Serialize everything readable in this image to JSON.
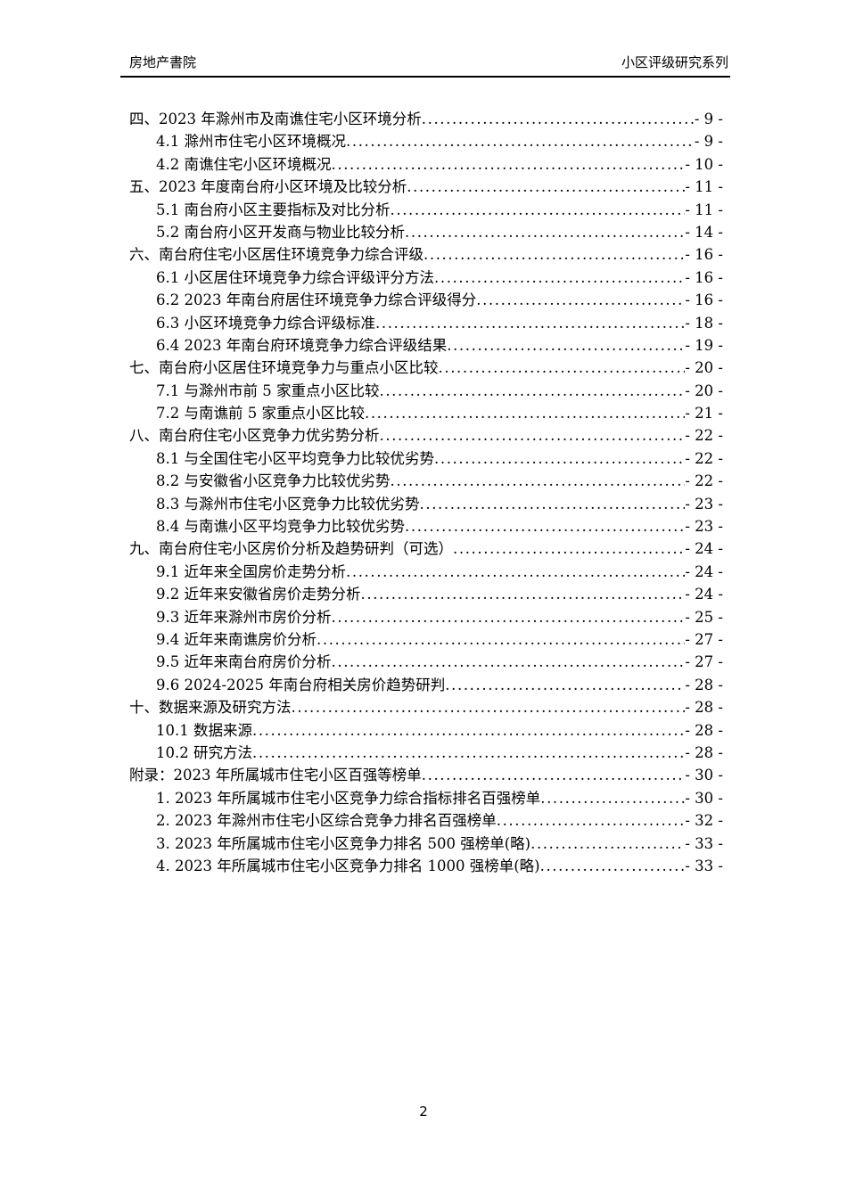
{
  "header": {
    "left": "房地产書院",
    "right": "小区评级研究系列"
  },
  "toc": {
    "entries": [
      {
        "level": 0,
        "text": "四、2023 年滁州市及南谯住宅小区环境分析",
        "page": "- 9 -"
      },
      {
        "level": 1,
        "text": "4.1 滁州市住宅小区环境概况",
        "page": "- 9 -"
      },
      {
        "level": 1,
        "text": "4.2 南谯住宅小区环境概况",
        "page": "- 10 -"
      },
      {
        "level": 0,
        "text": "五、2023 年度南台府小区环境及比较分析",
        "page": "- 11 -"
      },
      {
        "level": 1,
        "text": "5.1 南台府小区主要指标及对比分析",
        "page": "- 11 -"
      },
      {
        "level": 1,
        "text": "5.2 南台府小区开发商与物业比较分析",
        "page": "- 14 -"
      },
      {
        "level": 0,
        "text": "六、南台府住宅小区居住环境竞争力综合评级",
        "page": "- 16 -"
      },
      {
        "level": 1,
        "text": "6.1 小区居住环境竞争力综合评级评分方法",
        "page": "- 16 -"
      },
      {
        "level": 1,
        "text": "6.2 2023 年南台府居住环境竞争力综合评级得分",
        "page": "- 16 -"
      },
      {
        "level": 1,
        "text": "6.3 小区环境竞争力综合评级标准",
        "page": "- 18 -"
      },
      {
        "level": 1,
        "text": "6.4 2023 年南台府环境竞争力综合评级结果",
        "page": "- 19 -"
      },
      {
        "level": 0,
        "text": "七、南台府小区居住环境竞争力与重点小区比较",
        "page": "- 20 -"
      },
      {
        "level": 1,
        "text": "7.1 与滁州市前 5 家重点小区比较",
        "page": "- 20 -"
      },
      {
        "level": 1,
        "text": "7.2 与南谯前 5 家重点小区比较",
        "page": "- 21 -"
      },
      {
        "level": 0,
        "text": "八、南台府住宅小区竞争力优劣势分析",
        "page": "- 22 -"
      },
      {
        "level": 1,
        "text": "8.1 与全国住宅小区平均竞争力比较优劣势",
        "page": "- 22 -"
      },
      {
        "level": 1,
        "text": "8.2 与安徽省小区竞争力比较优劣势",
        "page": "- 22 -"
      },
      {
        "level": 1,
        "text": "8.3 与滁州市住宅小区竞争力比较优劣势",
        "page": "- 23 -"
      },
      {
        "level": 1,
        "text": "8.4 与南谯小区平均竞争力比较优劣势",
        "page": "- 23 -"
      },
      {
        "level": 0,
        "text": "九、南台府住宅小区房价分析及趋势研判（可选）",
        "page": "- 24 -"
      },
      {
        "level": 1,
        "text": "9.1 近年来全国房价走势分析",
        "page": "- 24 -"
      },
      {
        "level": 1,
        "text": "9.2 近年来安徽省房价走势分析",
        "page": "- 24 -"
      },
      {
        "level": 1,
        "text": "9.3 近年来滁州市房价分析",
        "page": "- 25 -"
      },
      {
        "level": 1,
        "text": "9.4 近年来南谯房价分析",
        "page": "- 27 -"
      },
      {
        "level": 1,
        "text": "9.5 近年来南台府房价分析",
        "page": "- 27 -"
      },
      {
        "level": 1,
        "text": "9.6 2024-2025 年南台府相关房价趋势研判",
        "page": "- 28 -"
      },
      {
        "level": 0,
        "text": "十、数据来源及研究方法",
        "page": "- 28 -"
      },
      {
        "level": 1,
        "text": "10.1 数据来源",
        "page": "- 28 -"
      },
      {
        "level": 1,
        "text": "10.2 研究方法",
        "page": "- 28 -"
      },
      {
        "level": 0,
        "text": "附录：2023 年所属城市住宅小区百强等榜单",
        "page": "- 30 -"
      },
      {
        "level": 1,
        "text": "1. 2023 年所属城市住宅小区竞争力综合指标排名百强榜单",
        "page": "- 30 -"
      },
      {
        "level": 1,
        "text": "2. 2023 年滁州市住宅小区综合竞争力排名百强榜单",
        "page": "- 32 -"
      },
      {
        "level": 1,
        "text": "3. 2023 年所属城市住宅小区竞争力排名 500 强榜单(略)",
        "page": "- 33 -"
      },
      {
        "level": 1,
        "text": "4. 2023 年所属城市住宅小区竞争力排名 1000 强榜单(略)",
        "page": "- 33 -"
      }
    ]
  },
  "footer": {
    "page_number": "2"
  }
}
